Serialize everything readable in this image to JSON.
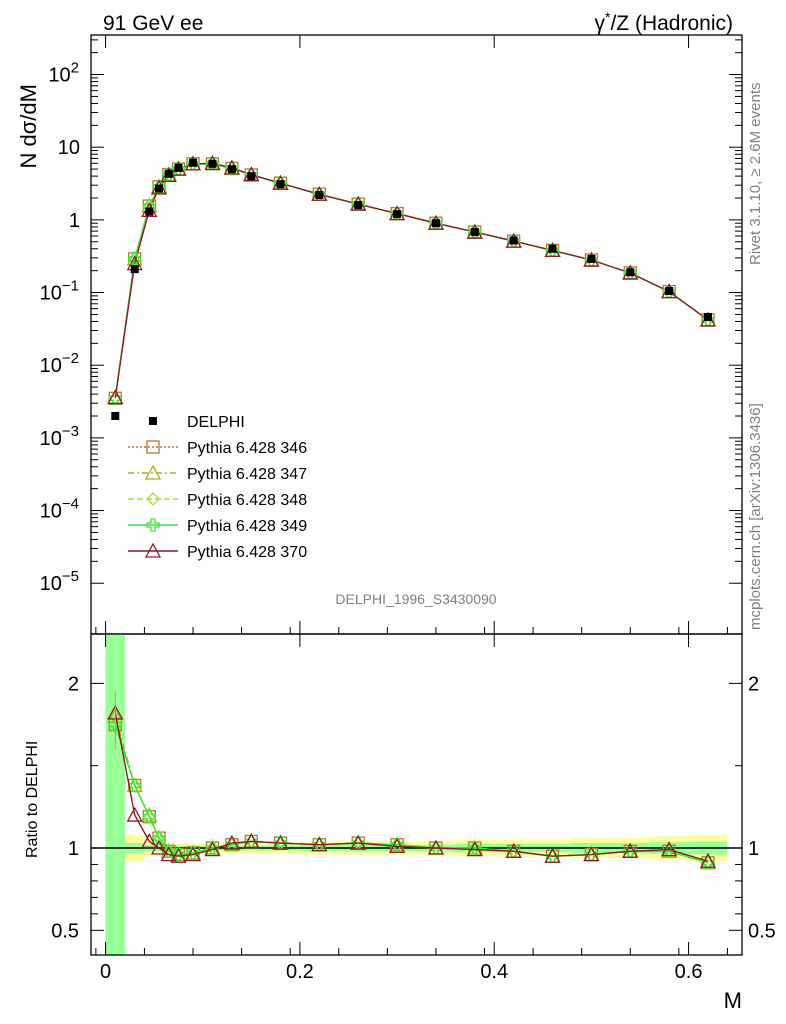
{
  "header": {
    "left": "91 GeV ee",
    "right_sym": "γ",
    "right_sup": "*",
    "right_rest": "/Z (Hadronic)"
  },
  "side": {
    "rivet": "Rivet 3.1.10, ≥ 2.6M events",
    "mcplots": "mcplots.cern.ch [arXiv:1306.3436]"
  },
  "chart_data": [
    {
      "type": "line",
      "analysis_label": "DELPHI_1996_S3430090",
      "ylabel_main": "N d",
      "ylabel_sigma": "σ",
      "ylabel_tail": "/dM",
      "xlabel": "M",
      "xlim": [
        -0.015,
        0.655
      ],
      "ylim": [
        2e-06,
        350
      ],
      "yscale": "log",
      "yticks": [
        {
          "mant": "10",
          "exp": "−5",
          "v": 1e-05
        },
        {
          "mant": "10",
          "exp": "−4",
          "v": 0.0001
        },
        {
          "mant": "10",
          "exp": "−3",
          "v": 0.001
        },
        {
          "mant": "10",
          "exp": "−2",
          "v": 0.01
        },
        {
          "mant": "10",
          "exp": "−1",
          "v": 0.1
        },
        {
          "mant": "1",
          "exp": "",
          "v": 1
        },
        {
          "mant": "10",
          "exp": "",
          "v": 10
        },
        {
          "mant": "10",
          "exp": "2",
          "v": 100
        }
      ],
      "x": [
        0.01,
        0.03,
        0.045,
        0.055,
        0.065,
        0.075,
        0.09,
        0.11,
        0.13,
        0.15,
        0.18,
        0.22,
        0.26,
        0.3,
        0.34,
        0.38,
        0.42,
        0.46,
        0.5,
        0.54,
        0.58,
        0.62
      ],
      "data": {
        "name": "DELPHI",
        "values": [
          0.002,
          0.21,
          1.3,
          2.7,
          4.3,
          5.2,
          6.1,
          5.9,
          5.0,
          4.0,
          3.1,
          2.2,
          1.6,
          1.2,
          0.9,
          0.68,
          0.52,
          0.4,
          0.29,
          0.19,
          0.105,
          0.046
        ]
      },
      "series": [
        {
          "name": "Pythia 6.428 346",
          "color": "#b8732e",
          "dash": "2,2",
          "marker": "square",
          "values": [
            0.0035,
            0.29,
            1.55,
            2.85,
            4.2,
            5.0,
            5.9,
            5.9,
            5.1,
            4.15,
            3.2,
            2.25,
            1.65,
            1.22,
            0.9,
            0.68,
            0.51,
            0.38,
            0.28,
            0.186,
            0.103,
            0.042
          ]
        },
        {
          "name": "Pythia 6.428 347",
          "color": "#a8b21c",
          "dash": "6,3,2,3",
          "marker": "triangle",
          "values": [
            0.0036,
            0.29,
            1.56,
            2.86,
            4.2,
            5.0,
            5.9,
            5.9,
            5.1,
            4.15,
            3.2,
            2.25,
            1.65,
            1.22,
            0.9,
            0.68,
            0.51,
            0.38,
            0.28,
            0.186,
            0.103,
            0.042
          ]
        },
        {
          "name": "Pythia 6.428 348",
          "color": "#9ee62e",
          "dash": "6,3",
          "marker": "diamond",
          "values": [
            0.0035,
            0.29,
            1.55,
            2.85,
            4.2,
            5.0,
            5.9,
            5.9,
            5.1,
            4.15,
            3.2,
            2.25,
            1.65,
            1.22,
            0.9,
            0.68,
            0.51,
            0.38,
            0.28,
            0.186,
            0.103,
            0.042
          ]
        },
        {
          "name": "Pythia 6.428 349",
          "color": "#38e638",
          "dash": "",
          "marker": "cross",
          "values": [
            0.0035,
            0.29,
            1.55,
            2.85,
            4.2,
            5.0,
            5.9,
            5.9,
            5.1,
            4.15,
            3.2,
            2.25,
            1.65,
            1.22,
            0.9,
            0.68,
            0.51,
            0.38,
            0.28,
            0.186,
            0.103,
            0.042
          ]
        },
        {
          "name": "Pythia 6.428 370",
          "color": "#8c1a2e",
          "dash": "",
          "marker": "triangle",
          "values": [
            0.0036,
            0.25,
            1.35,
            2.75,
            4.1,
            5.0,
            5.9,
            6.0,
            5.2,
            4.2,
            3.2,
            2.25,
            1.65,
            1.22,
            0.9,
            0.68,
            0.51,
            0.38,
            0.28,
            0.186,
            0.103,
            0.042
          ]
        }
      ]
    },
    {
      "type": "line",
      "ylabel": "Ratio to DELPHI",
      "xlim": [
        -0.015,
        0.655
      ],
      "ylim": [
        0.35,
        2.3
      ],
      "xticks": [
        "0",
        "0.2",
        "0.4",
        "0.6"
      ],
      "xtick_values": [
        0,
        0.2,
        0.4,
        0.6
      ],
      "yticks": [
        "0.5",
        "1",
        "2"
      ],
      "ytick_values": [
        0.5,
        1,
        2
      ],
      "bin_edges": [
        0.0,
        0.02,
        0.04,
        0.05,
        0.06,
        0.07,
        0.08,
        0.1,
        0.12,
        0.14,
        0.16,
        0.2,
        0.24,
        0.28,
        0.32,
        0.36,
        0.4,
        0.44,
        0.48,
        0.52,
        0.56,
        0.6,
        0.64
      ],
      "band_yellow": [
        [
          0.35,
          2.3
        ],
        [
          0.92,
          1.08
        ],
        [
          0.95,
          1.05
        ],
        [
          0.96,
          1.04
        ],
        [
          0.97,
          1.03
        ],
        [
          0.97,
          1.03
        ],
        [
          0.97,
          1.03
        ],
        [
          0.97,
          1.03
        ],
        [
          0.97,
          1.03
        ],
        [
          0.97,
          1.03
        ],
        [
          0.97,
          1.03
        ],
        [
          0.96,
          1.04
        ],
        [
          0.96,
          1.04
        ],
        [
          0.96,
          1.04
        ],
        [
          0.96,
          1.04
        ],
        [
          0.95,
          1.05
        ],
        [
          0.95,
          1.05
        ],
        [
          0.95,
          1.05
        ],
        [
          0.94,
          1.06
        ],
        [
          0.94,
          1.06
        ],
        [
          0.93,
          1.07
        ],
        [
          0.92,
          1.08
        ]
      ],
      "band_green": [
        [
          0.35,
          2.3
        ],
        [
          0.97,
          1.03
        ],
        [
          0.98,
          1.02
        ],
        [
          0.98,
          1.02
        ],
        [
          0.985,
          1.015
        ],
        [
          0.985,
          1.015
        ],
        [
          0.985,
          1.015
        ],
        [
          0.985,
          1.015
        ],
        [
          0.985,
          1.015
        ],
        [
          0.985,
          1.015
        ],
        [
          0.985,
          1.015
        ],
        [
          0.98,
          1.02
        ],
        [
          0.98,
          1.02
        ],
        [
          0.98,
          1.02
        ],
        [
          0.98,
          1.02
        ],
        [
          0.975,
          1.025
        ],
        [
          0.975,
          1.025
        ],
        [
          0.975,
          1.025
        ],
        [
          0.97,
          1.03
        ],
        [
          0.97,
          1.03
        ],
        [
          0.965,
          1.035
        ],
        [
          0.96,
          1.04
        ]
      ],
      "series": [
        {
          "name": "Pythia 6.428 346",
          "values": [
            1.75,
            1.38,
            1.19,
            1.06,
            0.98,
            0.96,
            0.97,
            1.0,
            1.02,
            1.04,
            1.03,
            1.02,
            1.03,
            1.02,
            1.0,
            1.0,
            0.98,
            0.95,
            0.96,
            0.98,
            0.98,
            0.91
          ]
        },
        {
          "name": "Pythia 6.428 347",
          "values": [
            1.8,
            1.38,
            1.2,
            1.06,
            0.98,
            0.96,
            0.97,
            1.0,
            1.02,
            1.04,
            1.03,
            1.02,
            1.03,
            1.02,
            1.0,
            1.0,
            0.98,
            0.95,
            0.96,
            0.98,
            0.98,
            0.91
          ]
        },
        {
          "name": "Pythia 6.428 348",
          "values": [
            1.75,
            1.38,
            1.19,
            1.06,
            0.98,
            0.96,
            0.97,
            1.0,
            1.02,
            1.04,
            1.03,
            1.02,
            1.03,
            1.02,
            1.0,
            1.0,
            0.98,
            0.95,
            0.96,
            0.98,
            0.98,
            0.91
          ]
        },
        {
          "name": "Pythia 6.428 349",
          "values": [
            1.75,
            1.38,
            1.19,
            1.06,
            0.98,
            0.96,
            0.97,
            1.0,
            1.02,
            1.04,
            1.03,
            1.02,
            1.03,
            1.02,
            1.0,
            1.0,
            0.98,
            0.95,
            0.96,
            0.98,
            0.98,
            0.91
          ]
        },
        {
          "name": "Pythia 6.428 370",
          "values": [
            1.82,
            1.2,
            1.04,
            1.0,
            0.96,
            0.95,
            0.96,
            0.99,
            1.03,
            1.04,
            1.03,
            1.02,
            1.03,
            1.01,
            1.0,
            0.99,
            0.98,
            0.95,
            0.96,
            0.98,
            0.99,
            0.92
          ]
        }
      ]
    }
  ]
}
